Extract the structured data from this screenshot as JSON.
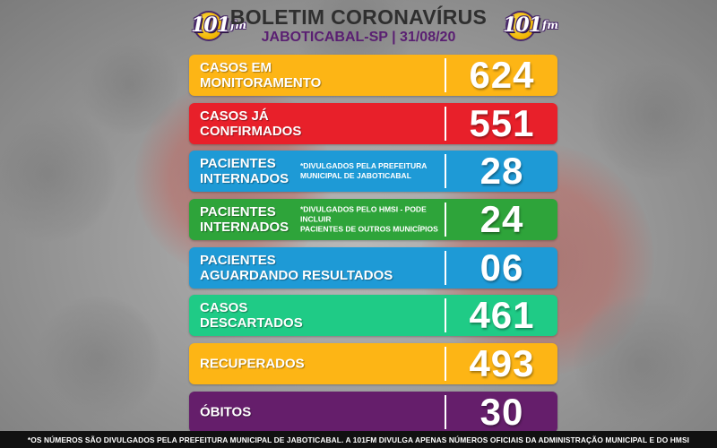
{
  "header": {
    "logo_text": "101",
    "logo_sub": "fm",
    "title": "BOLETIM CORONAVÍRUS",
    "subtitle": "JABOTICABAL-SP | 31/08/20"
  },
  "colors": {
    "orange": "#FDB515",
    "red": "#E8202A",
    "blue": "#1E9AD6",
    "green": "#2EA43A",
    "teal": "#1FCB86",
    "purple": "#651E6B",
    "title_text": "#2F2F2F",
    "subtitle_text": "#5A1F72"
  },
  "rows": [
    {
      "label": "CASOS EM\nMONITORAMENTO",
      "note": "",
      "value": "624",
      "color": "#FDB515"
    },
    {
      "label": "CASOS JÁ\nCONFIRMADOS",
      "note": "",
      "value": "551",
      "color": "#E8202A"
    },
    {
      "label": "PACIENTES\nINTERNADOS",
      "note": "*DIVULGADOS PELA PREFEITURA\nMUNICIPAL DE JABOTICABAL",
      "value": "28",
      "color": "#1E9AD6"
    },
    {
      "label": "PACIENTES\nINTERNADOS",
      "note": "*DIVULGADOS PELO HMSI - PODE INCLUIR\nPACIENTES DE OUTROS MUNICÍPIOS",
      "value": "24",
      "color": "#2EA43A"
    },
    {
      "label": "PACIENTES\nAGUARDANDO RESULTADOS",
      "note": "",
      "value": "06",
      "color": "#1E9AD6"
    },
    {
      "label": "CASOS\nDESCARTADOS",
      "note": "",
      "value": "461",
      "color": "#1FCB86"
    },
    {
      "label": "RECUPERADOS",
      "note": "",
      "value": "493",
      "color": "#FDB515"
    },
    {
      "label": "ÓBITOS",
      "note": "",
      "value": "30",
      "color": "#651E6B"
    }
  ],
  "footer": {
    "text": "*OS NÚMEROS SÃO DIVULGADOS PELA PREFEITURA MUNICIPAL DE JABOTICABAL. A 101FM DIVULGA APENAS NÚMEROS OFICIAIS DA ADMINISTRAÇÃO MUNICIPAL E DO HMSI"
  }
}
